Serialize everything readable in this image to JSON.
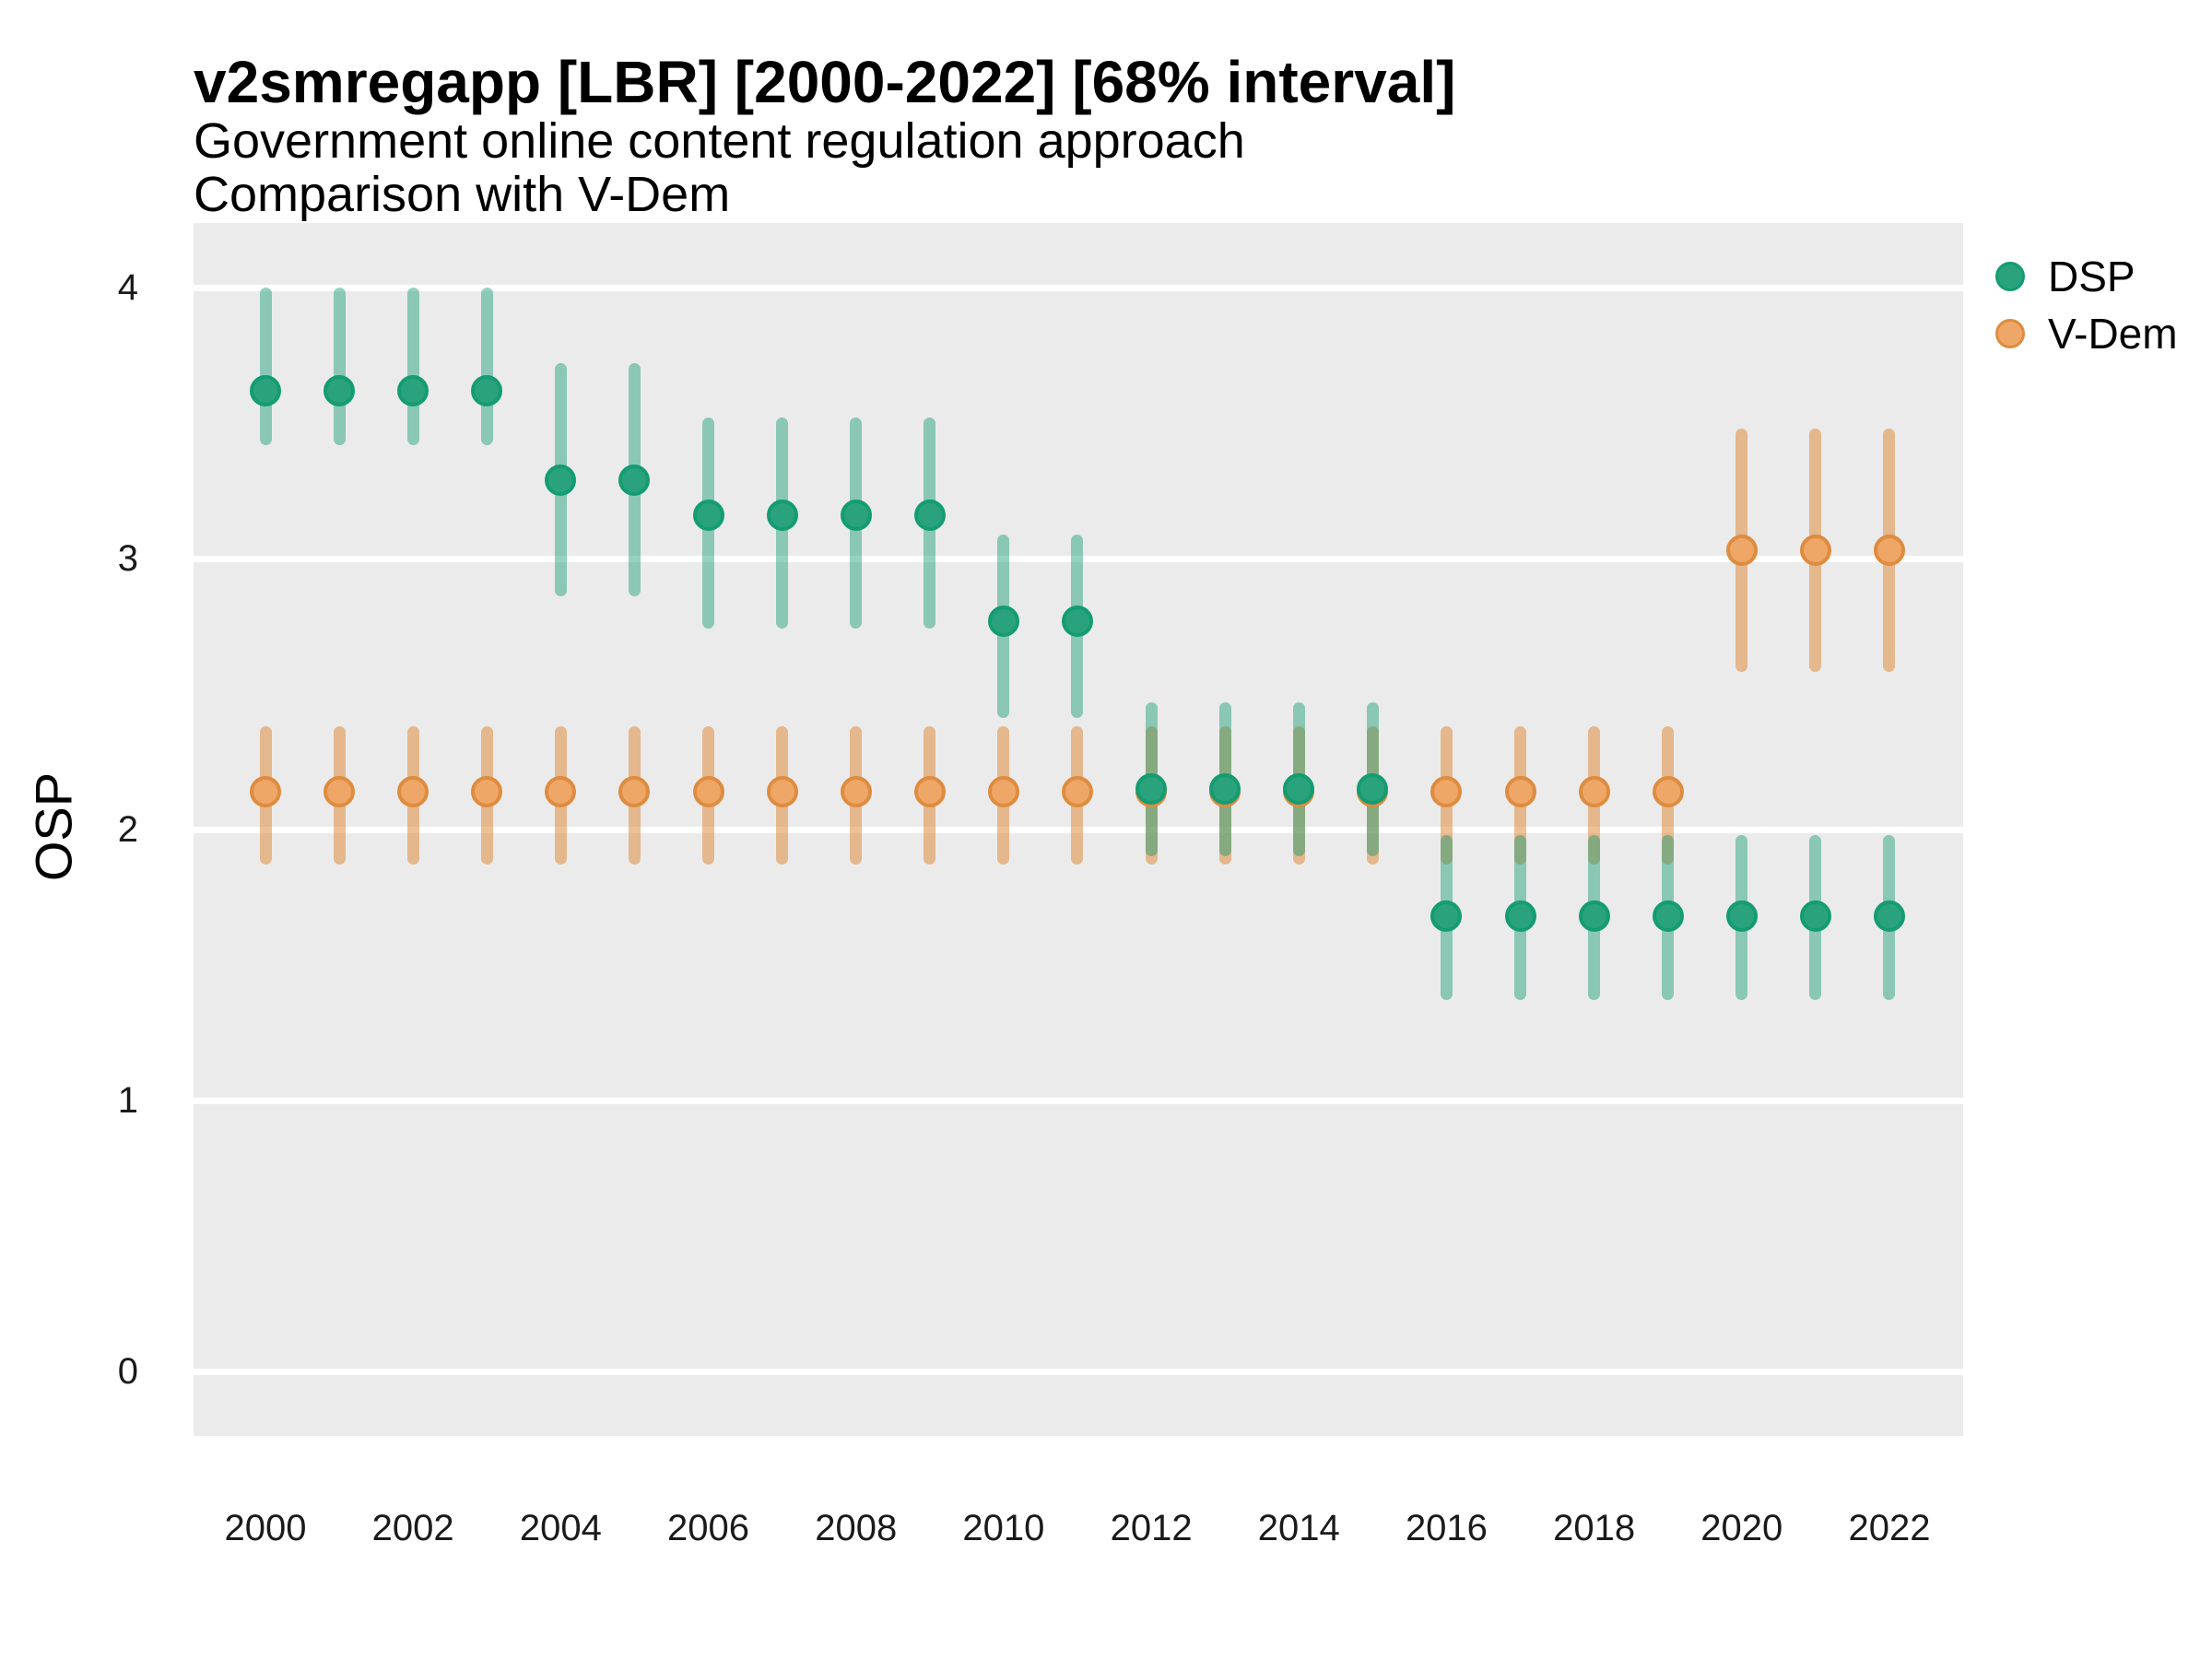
{
  "header": {
    "title": "v2smregapp [LBR] [2000-2022] [68% interval]",
    "subtitle1": "Government online content regulation approach",
    "subtitle2": "Comparison with V-Dem"
  },
  "colors": {
    "panel_background": "#EBEBEB",
    "page_background": "#FFFFFF",
    "gridline": "#FFFFFF",
    "dsp_point_fill": "#2AA37C",
    "dsp_point_stroke": "#149C72",
    "dsp_interval": "rgba(20,156,114,0.45)",
    "vdem_point_fill": "#EFA768",
    "vdem_point_stroke": "#DE8C3F",
    "vdem_interval": "rgba(222,140,63,0.55)"
  },
  "chart_data": {
    "type": "scatter",
    "title": "v2smregapp [LBR] [2000-2022] [68% interval]",
    "subtitle": [
      "Government online content regulation approach",
      "Comparison with V-Dem"
    ],
    "xlabel": "",
    "ylabel": "OSP",
    "grid": "major-horizontal-only",
    "legend_position": "top-right",
    "interval_level": "68%",
    "country": "LBR",
    "variable": "v2smregapp",
    "x": [
      2000,
      2001,
      2002,
      2003,
      2004,
      2005,
      2006,
      2007,
      2008,
      2009,
      2010,
      2011,
      2012,
      2013,
      2014,
      2015,
      2016,
      2017,
      2018,
      2019,
      2020,
      2021,
      2022
    ],
    "x_tick_years": [
      2000,
      2002,
      2004,
      2006,
      2008,
      2010,
      2012,
      2014,
      2016,
      2018,
      2020,
      2022
    ],
    "y_ticks": [
      4,
      3,
      2,
      1,
      0
    ],
    "ylim": [
      -0.24,
      4.24
    ],
    "xlim": [
      1999.0,
      2023.0
    ],
    "series": [
      {
        "name": "DSP",
        "key": "dsp",
        "est": [
          3.62,
          3.62,
          3.62,
          3.62,
          3.29,
          3.29,
          3.16,
          3.16,
          3.16,
          3.16,
          2.77,
          2.77,
          2.15,
          2.15,
          2.15,
          2.15,
          1.68,
          1.68,
          1.68,
          1.68,
          1.68,
          1.68,
          1.68
        ],
        "lo": [
          3.42,
          3.42,
          3.42,
          3.42,
          2.86,
          2.86,
          2.74,
          2.74,
          2.74,
          2.74,
          2.41,
          2.41,
          1.9,
          1.9,
          1.9,
          1.9,
          1.37,
          1.37,
          1.37,
          1.37,
          1.37,
          1.37,
          1.37
        ],
        "hi": [
          4.0,
          4.0,
          4.0,
          4.0,
          3.72,
          3.72,
          3.52,
          3.52,
          3.52,
          3.52,
          3.09,
          3.09,
          2.47,
          2.47,
          2.47,
          2.47,
          1.98,
          1.98,
          1.98,
          1.98,
          1.98,
          1.98,
          1.98
        ]
      },
      {
        "name": "V-Dem",
        "key": "vdem",
        "est": [
          2.14,
          2.14,
          2.14,
          2.14,
          2.14,
          2.14,
          2.14,
          2.14,
          2.14,
          2.14,
          2.14,
          2.14,
          2.14,
          2.14,
          2.14,
          2.14,
          2.14,
          2.14,
          2.14,
          2.14,
          3.03,
          3.03,
          3.03
        ],
        "lo": [
          1.87,
          1.87,
          1.87,
          1.87,
          1.87,
          1.87,
          1.87,
          1.87,
          1.87,
          1.87,
          1.87,
          1.87,
          1.87,
          1.87,
          1.87,
          1.87,
          1.87,
          1.87,
          1.87,
          1.87,
          2.58,
          2.58,
          2.58
        ],
        "hi": [
          2.38,
          2.38,
          2.38,
          2.38,
          2.38,
          2.38,
          2.38,
          2.38,
          2.38,
          2.38,
          2.38,
          2.38,
          2.38,
          2.38,
          2.38,
          2.38,
          2.38,
          2.38,
          2.38,
          2.38,
          3.48,
          3.48,
          3.48
        ]
      }
    ]
  }
}
